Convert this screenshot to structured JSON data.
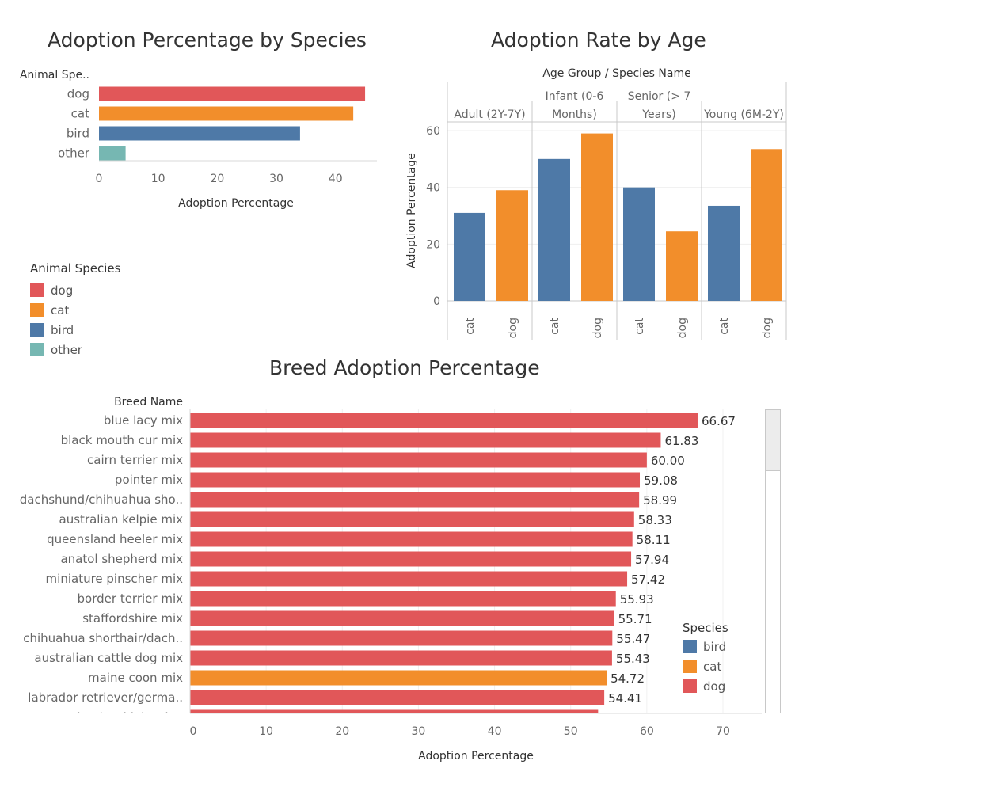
{
  "colors": {
    "dog": "#e15759",
    "cat": "#f28e2b",
    "bird": "#4e79a7",
    "other": "#76b7b2"
  },
  "chart_data": [
    {
      "type": "bar",
      "orientation": "horizontal",
      "title": "Adoption Percentage by Species",
      "ylabel": "Animal Spe..",
      "xlabel": "Adoption Percentage",
      "categories": [
        "dog",
        "cat",
        "bird",
        "other"
      ],
      "values": [
        45,
        43,
        34,
        4.5
      ],
      "xticks": [
        0,
        10,
        20,
        30,
        40
      ],
      "xlim": [
        0,
        47
      ]
    },
    {
      "type": "bar",
      "title": "Adoption Rate by Age",
      "header": "Age Group  /  Species Name",
      "ylabel": "Adoption Percentage",
      "yticks": [
        0,
        20,
        40,
        60
      ],
      "ylim": [
        0,
        62
      ],
      "groups": [
        {
          "label": [
            "Adult (2Y-7Y)"
          ],
          "bars": [
            {
              "species": "cat",
              "value": 31
            },
            {
              "species": "dog",
              "value": 39
            }
          ]
        },
        {
          "label": [
            "Infant (0-6",
            "Months)"
          ],
          "bars": [
            {
              "species": "cat",
              "value": 50
            },
            {
              "species": "dog",
              "value": 59
            }
          ]
        },
        {
          "label": [
            "Senior (> 7",
            "Years)"
          ],
          "bars": [
            {
              "species": "cat",
              "value": 40
            },
            {
              "species": "dog",
              "value": 24.5
            }
          ]
        },
        {
          "label": [
            "Young (6M-2Y)"
          ],
          "bars": [
            {
              "species": "cat",
              "value": 33.5
            },
            {
              "species": "dog",
              "value": 53.5
            }
          ]
        }
      ]
    },
    {
      "type": "bar",
      "orientation": "horizontal",
      "title": "Breed Adoption Percentage",
      "ylabel": "Breed Name",
      "xlabel": "Adoption Percentage",
      "xticks": [
        0,
        10,
        20,
        30,
        40,
        50,
        60,
        70
      ],
      "xlim": [
        0,
        75
      ],
      "rows": [
        {
          "name": "blue lacy mix",
          "value": 66.67,
          "label": "66.67",
          "species": "dog"
        },
        {
          "name": "black mouth cur mix",
          "value": 61.83,
          "label": "61.83",
          "species": "dog"
        },
        {
          "name": "cairn terrier mix",
          "value": 60.0,
          "label": "60.00",
          "species": "dog"
        },
        {
          "name": "pointer mix",
          "value": 59.08,
          "label": "59.08",
          "species": "dog"
        },
        {
          "name": "dachshund/chihuahua sho..",
          "value": 58.99,
          "label": "58.99",
          "species": "dog"
        },
        {
          "name": "australian kelpie mix",
          "value": 58.33,
          "label": "58.33",
          "species": "dog"
        },
        {
          "name": "queensland heeler mix",
          "value": 58.11,
          "label": "58.11",
          "species": "dog"
        },
        {
          "name": "anatol shepherd mix",
          "value": 57.94,
          "label": "57.94",
          "species": "dog"
        },
        {
          "name": "miniature pinscher mix",
          "value": 57.42,
          "label": "57.42",
          "species": "dog"
        },
        {
          "name": "border terrier mix",
          "value": 55.93,
          "label": "55.93",
          "species": "dog"
        },
        {
          "name": "staffordshire mix",
          "value": 55.71,
          "label": "55.71",
          "species": "dog"
        },
        {
          "name": "chihuahua shorthair/dach..",
          "value": 55.47,
          "label": "55.47",
          "species": "dog"
        },
        {
          "name": "australian cattle dog mix",
          "value": 55.43,
          "label": "55.43",
          "species": "dog"
        },
        {
          "name": "maine coon mix",
          "value": 54.72,
          "label": "54.72",
          "species": "cat"
        },
        {
          "name": "labrador retriever/germa..",
          "value": 54.41,
          "label": "54.41",
          "species": "dog"
        },
        {
          "name": "german shepherd/labrado..",
          "value": 53.6,
          "label": "",
          "species": "dog"
        }
      ]
    }
  ],
  "legend_species": {
    "title": "Animal Species",
    "items": [
      {
        "key": "dog",
        "label": "dog"
      },
      {
        "key": "cat",
        "label": "cat"
      },
      {
        "key": "bird",
        "label": "bird"
      },
      {
        "key": "other",
        "label": "other"
      }
    ]
  },
  "legend_breed": {
    "title": "Species",
    "items": [
      {
        "key": "bird",
        "label": "bird"
      },
      {
        "key": "cat",
        "label": "cat"
      },
      {
        "key": "dog",
        "label": "dog"
      }
    ]
  }
}
